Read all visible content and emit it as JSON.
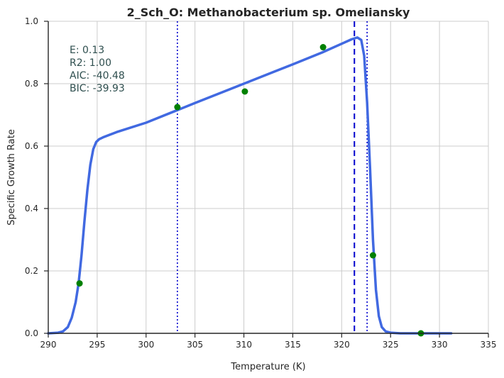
{
  "chart_data": {
    "type": "line",
    "title": "2_Sch_O: Methanobacterium sp. Omeliansky",
    "xlabel": "Temperature (K)",
    "ylabel": "Specific Growth Rate",
    "xlim": [
      290,
      335
    ],
    "ylim": [
      0.0,
      1.0
    ],
    "xticks": [
      "290",
      "295",
      "300",
      "305",
      "310",
      "315",
      "320",
      "325",
      "330",
      "335"
    ],
    "yticks": [
      "0.0",
      "0.2",
      "0.4",
      "0.6",
      "0.8",
      "1.0"
    ],
    "grid": true,
    "annotations": [
      "E:  0.13",
      "R2:  1.00",
      "AIC: -40.48",
      "BIC: -39.93"
    ],
    "series": [
      {
        "kind": "line",
        "color": "#4169e1",
        "x": [
          290.0,
          291.0,
          291.5,
          292.0,
          292.4,
          292.8,
          293.1,
          293.4,
          293.7,
          294.0,
          294.3,
          294.6,
          294.9,
          295.2,
          295.6,
          296.0,
          297.0,
          300.0,
          305.0,
          310.0,
          315.0,
          318.0,
          320.0,
          321.0,
          321.6,
          322.0,
          322.3,
          322.6,
          322.9,
          323.2,
          323.5,
          323.8,
          324.1,
          324.5,
          325.0,
          326.0,
          328.0,
          331.2
        ],
        "y": [
          0.0,
          0.002,
          0.006,
          0.02,
          0.05,
          0.1,
          0.16,
          0.25,
          0.36,
          0.46,
          0.54,
          0.59,
          0.613,
          0.622,
          0.628,
          0.633,
          0.645,
          0.675,
          0.738,
          0.8,
          0.862,
          0.9,
          0.928,
          0.942,
          0.948,
          0.94,
          0.89,
          0.74,
          0.53,
          0.3,
          0.14,
          0.055,
          0.02,
          0.006,
          0.002,
          0.0,
          0.0,
          0.0
        ]
      },
      {
        "kind": "scatter",
        "color": "#008000",
        "x": [
          293.2,
          303.2,
          310.1,
          318.1,
          323.2,
          328.1
        ],
        "y": [
          0.16,
          0.725,
          0.775,
          0.917,
          0.25,
          0.0
        ]
      }
    ],
    "vlines": [
      {
        "x": 303.2,
        "style": "dotted",
        "color": "#0000cd"
      },
      {
        "x": 321.3,
        "style": "dashed",
        "color": "#0000cd"
      },
      {
        "x": 322.6,
        "style": "dotted",
        "color": "#0000cd"
      }
    ]
  }
}
